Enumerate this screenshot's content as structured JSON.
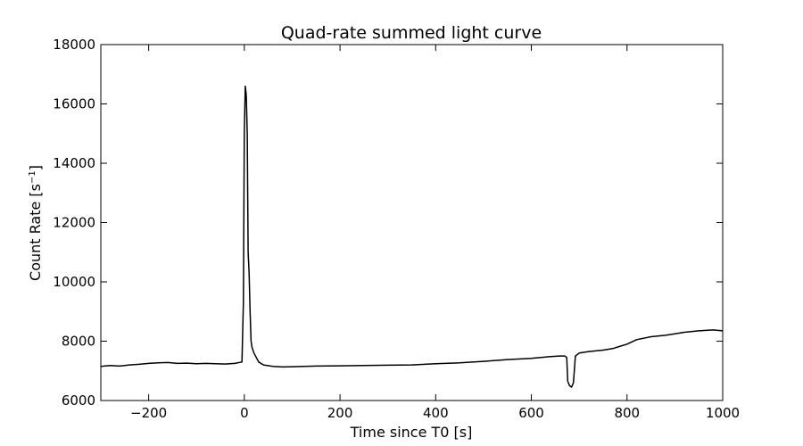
{
  "chart_data": {
    "type": "line",
    "title": "Quad-rate summed light curve",
    "xlabel": "Time since T0 [s]",
    "ylabel_main": "Count Rate [s",
    "ylabel_sup": "−1",
    "ylabel_close": "]",
    "xlim": [
      -300,
      1000
    ],
    "ylim": [
      6000,
      18000
    ],
    "grid": false,
    "legend": "none",
    "xticks": [
      -200,
      0,
      200,
      400,
      600,
      800,
      1000
    ],
    "xtick_labels": [
      "−200",
      "0",
      "200",
      "400",
      "600",
      "800",
      "1000"
    ],
    "yticks": [
      6000,
      8000,
      10000,
      12000,
      14000,
      16000,
      18000
    ],
    "ytick_labels": [
      "6000",
      "8000",
      "10000",
      "12000",
      "14000",
      "16000",
      "18000"
    ],
    "line_color": "#000000",
    "series": [
      {
        "x": [
          -300,
          -280,
          -260,
          -240,
          -220,
          -200,
          -180,
          -160,
          -140,
          -120,
          -100,
          -80,
          -60,
          -40,
          -20,
          -5,
          -2,
          0,
          2,
          4,
          6,
          8,
          10,
          12,
          14,
          16,
          20,
          25,
          30,
          40,
          60,
          80,
          100,
          150,
          200,
          250,
          300,
          350,
          400,
          450,
          500,
          550,
          600,
          640,
          660,
          670,
          674,
          676,
          680,
          684,
          688,
          692,
          700,
          720,
          750,
          770,
          780,
          800,
          820,
          850,
          880,
          900,
          920,
          950,
          980,
          1000
        ],
        "y": [
          7150,
          7180,
          7160,
          7200,
          7220,
          7250,
          7270,
          7280,
          7250,
          7260,
          7240,
          7250,
          7240,
          7230,
          7250,
          7300,
          9300,
          15000,
          16600,
          16300,
          15000,
          11000,
          10300,
          9000,
          8000,
          7800,
          7600,
          7450,
          7300,
          7200,
          7150,
          7130,
          7140,
          7160,
          7170,
          7180,
          7190,
          7200,
          7240,
          7270,
          7320,
          7380,
          7420,
          7480,
          7500,
          7500,
          7450,
          6650,
          6500,
          6450,
          6600,
          7500,
          7600,
          7650,
          7700,
          7750,
          7800,
          7900,
          8050,
          8150,
          8200,
          8250,
          8300,
          8350,
          8380,
          8350
        ]
      }
    ]
  }
}
